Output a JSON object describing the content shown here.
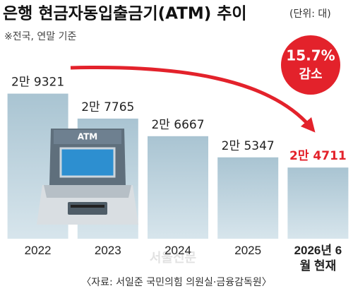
{
  "chart_data": {
    "type": "bar",
    "title": "은행 현금자동입출금기(ATM) 추이",
    "unit": "(단위: 대)",
    "note": "※전국, 연말 기준",
    "annotation": [
      "15.7%",
      "감소"
    ],
    "source": "〈자료: 서일준 국민의힘 의원실·금융감독원〉",
    "watermark": "서울신문",
    "categories": [
      "2022",
      "2023",
      "2024",
      "2025",
      "2026년 6월 현재"
    ],
    "values": [
      29321,
      27765,
      26667,
      25347,
      24711
    ],
    "value_labels": [
      "2만 9321",
      "2만 7765",
      "2만 6667",
      "2만 5347",
      "2만 4711"
    ],
    "color": "#b7cfdb",
    "highlight_color": "#e3222b",
    "ylim": [
      20270,
      33400
    ]
  }
}
